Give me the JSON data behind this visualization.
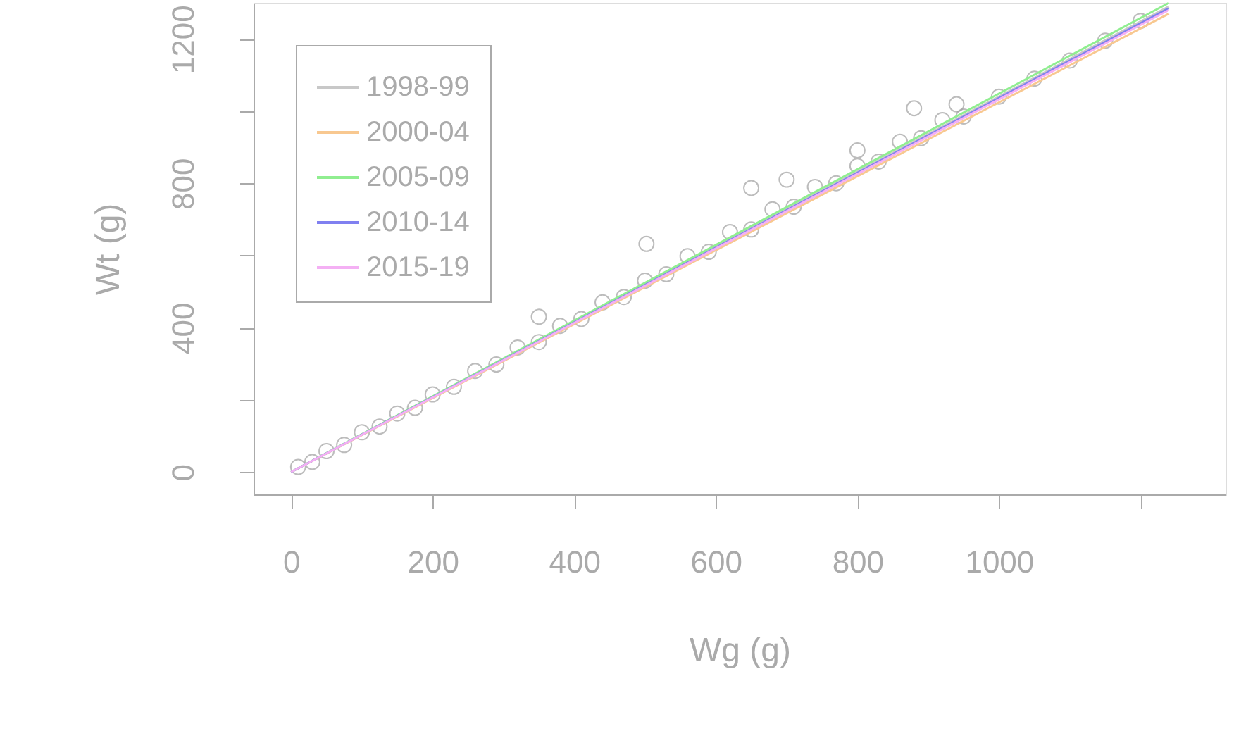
{
  "chart_data": {
    "type": "scatter",
    "xlabel": "Wg (g)",
    "ylabel": "Wt (g)",
    "xlim": [
      -53,
      1320
    ],
    "ylim": [
      -62,
      1300
    ],
    "xticks": [
      0,
      200,
      400,
      600,
      800,
      1000,
      {
        "value": 1200,
        "label": null
      }
    ],
    "yticks": [
      0,
      {
        "value": 200,
        "label": null
      },
      400,
      {
        "value": 600,
        "label": null
      },
      800,
      {
        "value": 1000,
        "label": null
      },
      1200
    ],
    "grid": false,
    "legend": "top left",
    "series": [
      {
        "color": "#a0a0a0",
        "marker": "circle",
        "x": [
          10,
          30,
          50,
          75,
          100,
          125,
          150,
          175,
          200,
          230,
          260,
          290,
          320,
          350,
          380,
          410,
          440,
          470,
          500,
          530,
          560,
          590,
          620,
          650,
          680,
          710,
          740,
          770,
          800,
          830,
          860,
          890,
          920,
          950,
          1000,
          1050,
          1100,
          1150,
          1200,
          350,
          502,
          650,
          700,
          800,
          880,
          940
        ],
        "values": [
          14,
          28,
          58,
          75,
          110,
          126,
          162,
          178,
          215,
          236,
          280,
          298,
          345,
          360,
          405,
          424,
          470,
          485,
          530,
          548,
          598,
          610,
          665,
          672,
          728,
          735,
          790,
          800,
          848,
          860,
          915,
          925,
          975,
          985,
          1040,
          1090,
          1140,
          1195,
          1250,
          430,
          632,
          787,
          810,
          891,
          1008,
          1019
        ]
      },
      {
        "type": "line",
        "name": "1998-99",
        "color": "#c8c8c8",
        "x": [
          0,
          1240
        ],
        "values": [
          0,
          1290
        ]
      },
      {
        "type": "line",
        "name": "2000-04",
        "color": "#f8c890",
        "x": [
          0,
          1240
        ],
        "values": [
          0,
          1270
        ]
      },
      {
        "type": "line",
        "name": "2005-09",
        "color": "#90ee90",
        "x": [
          0,
          1240
        ],
        "values": [
          0,
          1300
        ]
      },
      {
        "type": "line",
        "name": "2010-14",
        "color": "#8080f0",
        "x": [
          0,
          1240
        ],
        "values": [
          0,
          1285
        ]
      },
      {
        "type": "line",
        "name": "2015-19",
        "color": "#f4b0f4",
        "x": [
          0,
          1240
        ],
        "values": [
          0,
          1280
        ]
      }
    ]
  }
}
